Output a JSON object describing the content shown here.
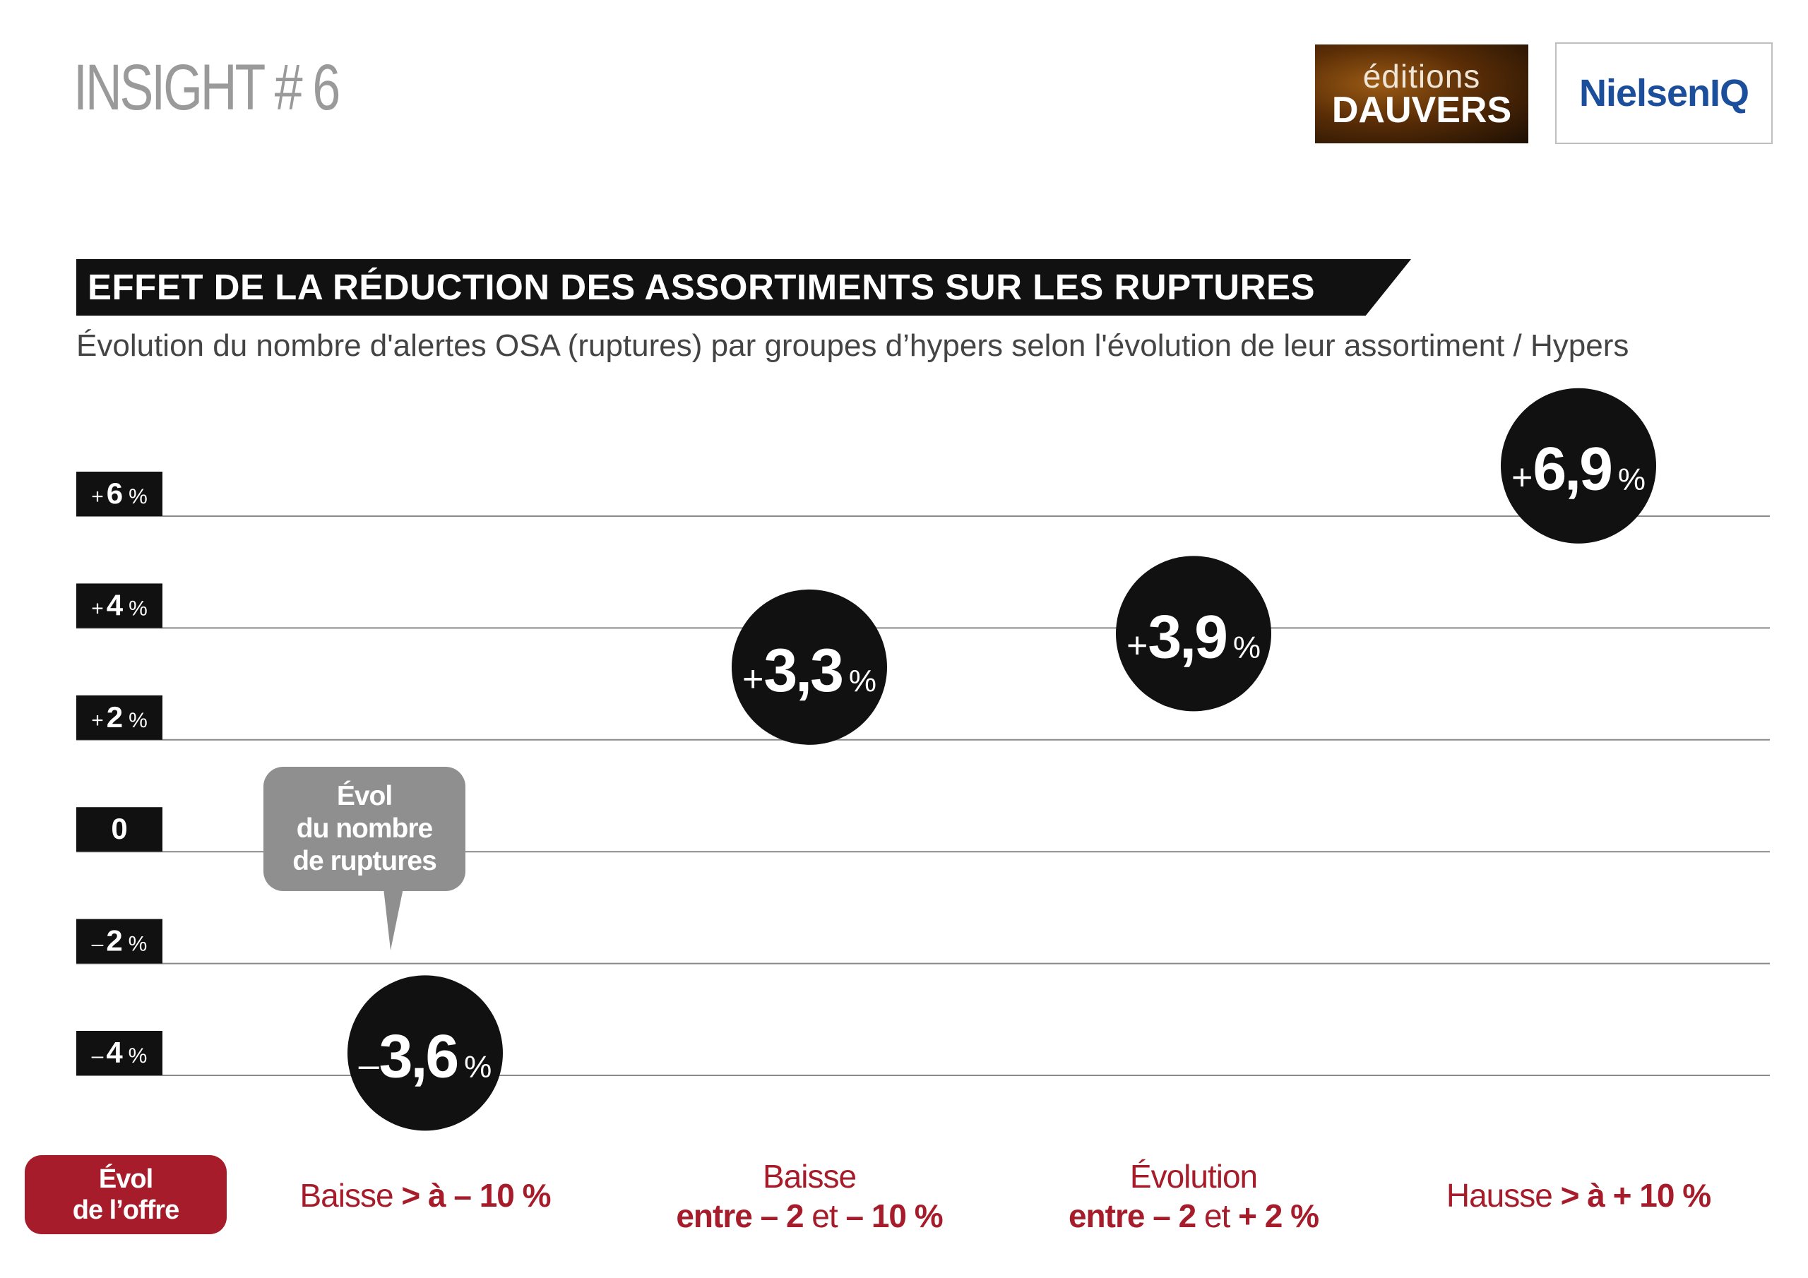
{
  "header": {
    "insight_label": "INSIGHT # 6",
    "logo_dauvers_line1": "éditions",
    "logo_dauvers_line2": "DAUVERS",
    "logo_nielsen": "NielsenIQ"
  },
  "colors": {
    "accent_red": "#a71c2a",
    "bubble": "#111111",
    "axis_label_bg": "#111111",
    "gridline": "#8a8a8a",
    "tooltip_bg": "#8f8f8f"
  },
  "chart_data": {
    "type": "scatter",
    "title": "EFFET DE LA RÉDUCTION DES ASSORTIMENTS SUR LES RUPTURES",
    "subtitle": "Évolution du nombre d'alertes OSA (ruptures) par groupes d’hypers selon l'évolution de leur assortiment / Hypers",
    "xlabel": "Évol de l’offre",
    "ylabel": "Évol du nombre de ruptures",
    "ylim": [
      -4,
      6
    ],
    "grid": true,
    "y_ticks": [
      {
        "value": 6,
        "sign": "+",
        "num": "6",
        "unit": "%"
      },
      {
        "value": 4,
        "sign": "+",
        "num": "4",
        "unit": "%"
      },
      {
        "value": 2,
        "sign": "+",
        "num": "2",
        "unit": "%"
      },
      {
        "value": 0,
        "sign": "",
        "num": "0",
        "unit": ""
      },
      {
        "value": -2,
        "sign": "–",
        "num": "2",
        "unit": "%"
      },
      {
        "value": -4,
        "sign": "–",
        "num": "4",
        "unit": "%"
      }
    ],
    "categories": [
      {
        "part1": "Baisse ",
        "part1_bold": "> à – 10 %",
        "part2": "",
        "part2_bold": "",
        "part2_light2": "",
        "part2_bold2": ""
      },
      {
        "part1": "Baisse",
        "part1_bold": "",
        "part2": "",
        "part2_bold": "entre – 2",
        "part2_light2": " et ",
        "part2_bold2": "– 10 %"
      },
      {
        "part1": "Évolution",
        "part1_bold": "",
        "part2": "",
        "part2_bold": "entre – 2",
        "part2_light2": " et ",
        "part2_bold2": "+ 2 %"
      },
      {
        "part1": "Hausse ",
        "part1_bold": "> à + 10 %",
        "part2": "",
        "part2_bold": "",
        "part2_light2": "",
        "part2_bold2": ""
      }
    ],
    "series": [
      {
        "values": [
          -3.6,
          3.3,
          3.9,
          6.9
        ],
        "labels": [
          {
            "sign": "–",
            "num": "3,6",
            "unit": "%"
          },
          {
            "sign": "+",
            "num": "3,3",
            "unit": "%"
          },
          {
            "sign": "+",
            "num": "3,9",
            "unit": "%"
          },
          {
            "sign": "+",
            "num": "6,9",
            "unit": "%"
          }
        ]
      }
    ]
  },
  "tooltip": {
    "line1": "Évol",
    "line2": "du nombre",
    "line3": "de ruptures"
  },
  "offre_badge": {
    "line1": "Évol",
    "line2": "de l’offre"
  }
}
